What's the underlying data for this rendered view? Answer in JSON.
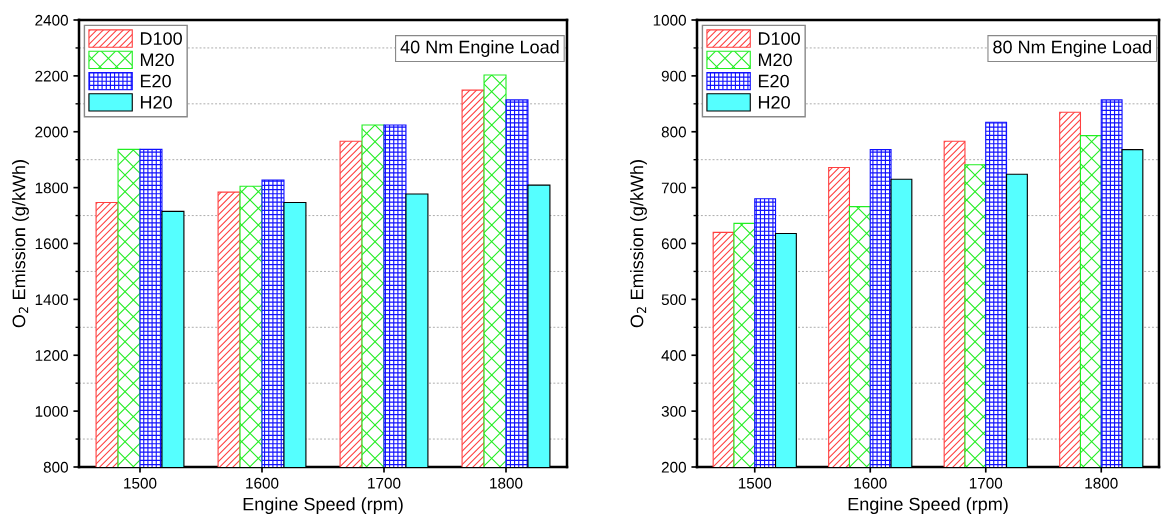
{
  "chart_data": [
    {
      "type": "bar",
      "categories": [
        "1500",
        "1600",
        "1700",
        "1800"
      ],
      "xlabel": "Engine Speed (rpm)",
      "ylabel": "O$_{2}$ Emission (g/kWh)",
      "annotations": [
        "40 Nm Engine Load"
      ],
      "ylim": [
        800,
        2400
      ],
      "yticks": [
        800,
        1000,
        1200,
        1400,
        1600,
        1800,
        2000,
        2200,
        2400
      ],
      "grid": "y",
      "legend": "top left",
      "series": [
        {
          "name": "D100",
          "color": "#ff4040",
          "values": [
            1747,
            1784,
            1966,
            2149
          ]
        },
        {
          "name": "M20",
          "color": "#22ee22",
          "values": [
            1937,
            1805,
            2024,
            2203
          ]
        },
        {
          "name": "E20",
          "color": "#1010ff",
          "values": [
            1937,
            1827,
            2024,
            2114
          ]
        },
        {
          "name": "H20",
          "color": "#55ffff",
          "values": [
            1715,
            1747,
            1777,
            1809
          ]
        }
      ]
    },
    {
      "type": "bar",
      "categories": [
        "1500",
        "1600",
        "1700",
        "1800"
      ],
      "xlabel": "Engine Speed (rpm)",
      "ylabel": "O$_{2}$ Emission (g/kWh)",
      "annotations": [
        "80 Nm Engine Load"
      ],
      "ylim": [
        200,
        1000
      ],
      "yticks": [
        200,
        300,
        400,
        500,
        600,
        700,
        800,
        900,
        1000
      ],
      "grid": "y",
      "legend": "top left",
      "series": [
        {
          "name": "D100",
          "color": "#ff4040",
          "values": [
            620,
            736,
            783,
            835
          ]
        },
        {
          "name": "M20",
          "color": "#22ee22",
          "values": [
            636,
            666,
            741,
            793
          ]
        },
        {
          "name": "E20",
          "color": "#1010ff",
          "values": [
            680,
            768,
            817,
            857
          ]
        },
        {
          "name": "H20",
          "color": "#55ffff",
          "values": [
            618,
            715,
            724,
            768
          ]
        }
      ]
    }
  ]
}
